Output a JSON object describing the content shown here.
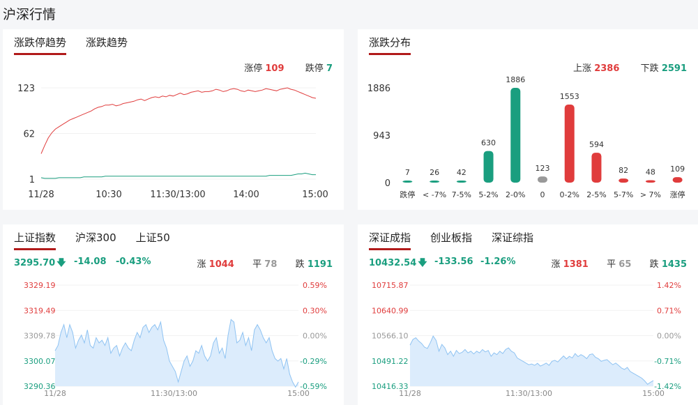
{
  "page_title": "沪深行情",
  "colors": {
    "up": "#e03c3c",
    "down": "#1a9e7f",
    "flat": "#999999",
    "accent": "#b11a1a"
  },
  "panel_trend": {
    "tabs": [
      {
        "label": "涨跌停趋势",
        "active": true
      },
      {
        "label": "涨跌趋势",
        "active": false
      }
    ],
    "legend": {
      "limit_up_label": "涨停",
      "limit_up_value": "109",
      "limit_down_label": "跌停",
      "limit_down_value": "7"
    }
  },
  "panel_distribution": {
    "tabs": [
      {
        "label": "涨跌分布",
        "active": true
      }
    ],
    "legend": {
      "up_label": "上涨",
      "up_value": "2386",
      "down_label": "下跌",
      "down_value": "2591"
    }
  },
  "panel_sh": {
    "tabs": [
      {
        "label": "上证指数",
        "active": true
      },
      {
        "label": "沪深300",
        "active": false
      },
      {
        "label": "上证50",
        "active": false
      }
    ],
    "quote": {
      "price": "3295.70",
      "change": "-14.08",
      "pct": "-0.43%",
      "up_label": "涨",
      "up_value": "1044",
      "flat_label": "平",
      "flat_value": "78",
      "down_label": "跌",
      "down_value": "1191"
    }
  },
  "panel_sz": {
    "tabs": [
      {
        "label": "深证成指",
        "active": true
      },
      {
        "label": "创业板指",
        "active": false
      },
      {
        "label": "深证综指",
        "active": false
      }
    ],
    "quote": {
      "price": "10432.54",
      "change": "-133.56",
      "pct": "-1.26%",
      "up_label": "涨",
      "up_value": "1381",
      "flat_label": "平",
      "flat_value": "65",
      "down_label": "跌",
      "down_value": "1435"
    }
  },
  "chart_data": [
    {
      "type": "line",
      "ylim": [
        1,
        123
      ],
      "y_ticks": [
        "123",
        "62",
        "1"
      ],
      "x_ticks": [
        "11/28",
        "10:30",
        "11:30/13:00",
        "14:00",
        "15:00"
      ],
      "series": [
        {
          "name": "涨停",
          "color": "#e03c3c",
          "values": [
            35,
            46,
            56,
            63,
            68,
            71,
            74,
            77,
            80,
            82,
            84,
            86,
            88,
            90,
            92,
            95,
            97,
            98,
            100,
            100,
            101,
            99,
            100,
            102,
            103,
            104,
            105,
            107,
            108,
            106,
            108,
            110,
            111,
            110,
            112,
            111,
            113,
            112,
            114,
            116,
            114,
            115,
            117,
            118,
            119,
            117,
            118,
            118,
            119,
            121,
            120,
            118,
            119,
            121,
            122,
            121,
            119,
            118,
            120,
            119,
            118,
            119,
            120,
            122,
            121,
            120,
            119,
            121,
            122,
            123,
            121,
            120,
            118,
            116,
            114,
            112,
            110,
            109
          ]
        },
        {
          "name": "跌停",
          "color": "#1a9e7f",
          "values": [
            3,
            2,
            2,
            2,
            2,
            3,
            3,
            3,
            3,
            3,
            3,
            3,
            4,
            4,
            4,
            4,
            4,
            4,
            5,
            5,
            5,
            5,
            5,
            5,
            5,
            5,
            5,
            5,
            5,
            5,
            5,
            5,
            5,
            5,
            5,
            5,
            5,
            5,
            5,
            5,
            5,
            5,
            5,
            5,
            5,
            5,
            5,
            5,
            5,
            5,
            5,
            5,
            5,
            5,
            5,
            5,
            5,
            5,
            5,
            5,
            5,
            5,
            5,
            5,
            6,
            6,
            6,
            6,
            6,
            6,
            6,
            7,
            8,
            8,
            9,
            8,
            7,
            7
          ]
        }
      ]
    },
    {
      "type": "bar",
      "categories": [
        "跌停",
        "< -7%",
        "7-5%",
        "5-2%",
        "2-0%",
        "0",
        "0-2%",
        "2-5%",
        "5-7%",
        "> 7%",
        "涨停"
      ],
      "values": [
        7,
        26,
        42,
        630,
        1886,
        123,
        1553,
        594,
        82,
        48,
        109
      ],
      "bar_colors": [
        "#1a9e7f",
        "#1a9e7f",
        "#1a9e7f",
        "#1a9e7f",
        "#1a9e7f",
        "#999999",
        "#e03c3c",
        "#e03c3c",
        "#e03c3c",
        "#e03c3c",
        "#e03c3c"
      ],
      "y_ticks": [
        "1886",
        "943",
        "0"
      ],
      "ylim": [
        0,
        1886
      ]
    },
    {
      "type": "area",
      "ylim": [
        3290.36,
        3329.19
      ],
      "y_ticks_left": [
        "3329.19",
        "3319.49",
        "3309.78",
        "3300.07",
        "3290.36"
      ],
      "y_ticks_right": [
        "0.59%",
        "0.30%",
        "0.00%",
        "-0.29%",
        "-0.59%"
      ],
      "x_ticks": [
        "11/28",
        "11:30/13:00",
        "15:00"
      ],
      "values": [
        3304,
        3306,
        3311,
        3314,
        3309,
        3314,
        3311,
        3305,
        3308,
        3310,
        3307,
        3312,
        3306,
        3305,
        3309,
        3307,
        3308,
        3306,
        3309,
        3303,
        3305,
        3306,
        3302,
        3305,
        3307,
        3305,
        3304,
        3308,
        3311,
        3309,
        3313,
        3314,
        3311,
        3313,
        3314,
        3312,
        3315,
        3308,
        3305,
        3300,
        3298,
        3296,
        3292,
        3296,
        3300,
        3302,
        3298,
        3300,
        3304,
        3303,
        3306,
        3302,
        3300,
        3302,
        3307,
        3309,
        3303,
        3305,
        3301,
        3310,
        3316,
        3315,
        3307,
        3308,
        3311,
        3306,
        3309,
        3304,
        3312,
        3314,
        3312,
        3309,
        3307,
        3309,
        3304,
        3301,
        3300,
        3301,
        3297,
        3301,
        3295,
        3292,
        3290,
        3292
      ]
    },
    {
      "type": "area",
      "ylim": [
        10416.33,
        10715.87
      ],
      "y_ticks_left": [
        "10715.87",
        "10640.99",
        "10566.10",
        "10491.22",
        "10416.33"
      ],
      "y_ticks_right": [
        "1.42%",
        "0.71%",
        "0.00%",
        "-0.71%",
        "-1.42%"
      ],
      "x_ticks": [
        "11/28",
        "11:30/13:00",
        "15:00"
      ],
      "values": [
        10538,
        10555,
        10560,
        10550,
        10543,
        10532,
        10528,
        10545,
        10565,
        10552,
        10520,
        10540,
        10530,
        10510,
        10520,
        10505,
        10522,
        10513,
        10517,
        10525,
        10515,
        10520,
        10512,
        10520,
        10515,
        10525,
        10518,
        10522,
        10505,
        10515,
        10510,
        10520,
        10513,
        10525,
        10530,
        10520,
        10515,
        10500,
        10495,
        10490,
        10485,
        10480,
        10482,
        10478,
        10484,
        10476,
        10480,
        10485,
        10478,
        10490,
        10493,
        10488,
        10497,
        10506,
        10497,
        10505,
        10500,
        10513,
        10504,
        10510,
        10505,
        10498,
        10510,
        10512,
        10502,
        10498,
        10490,
        10493,
        10495,
        10487,
        10480,
        10485,
        10478,
        10470,
        10466,
        10472,
        10460,
        10455,
        10450,
        10445,
        10440,
        10432,
        10422,
        10428,
        10433
      ]
    }
  ]
}
